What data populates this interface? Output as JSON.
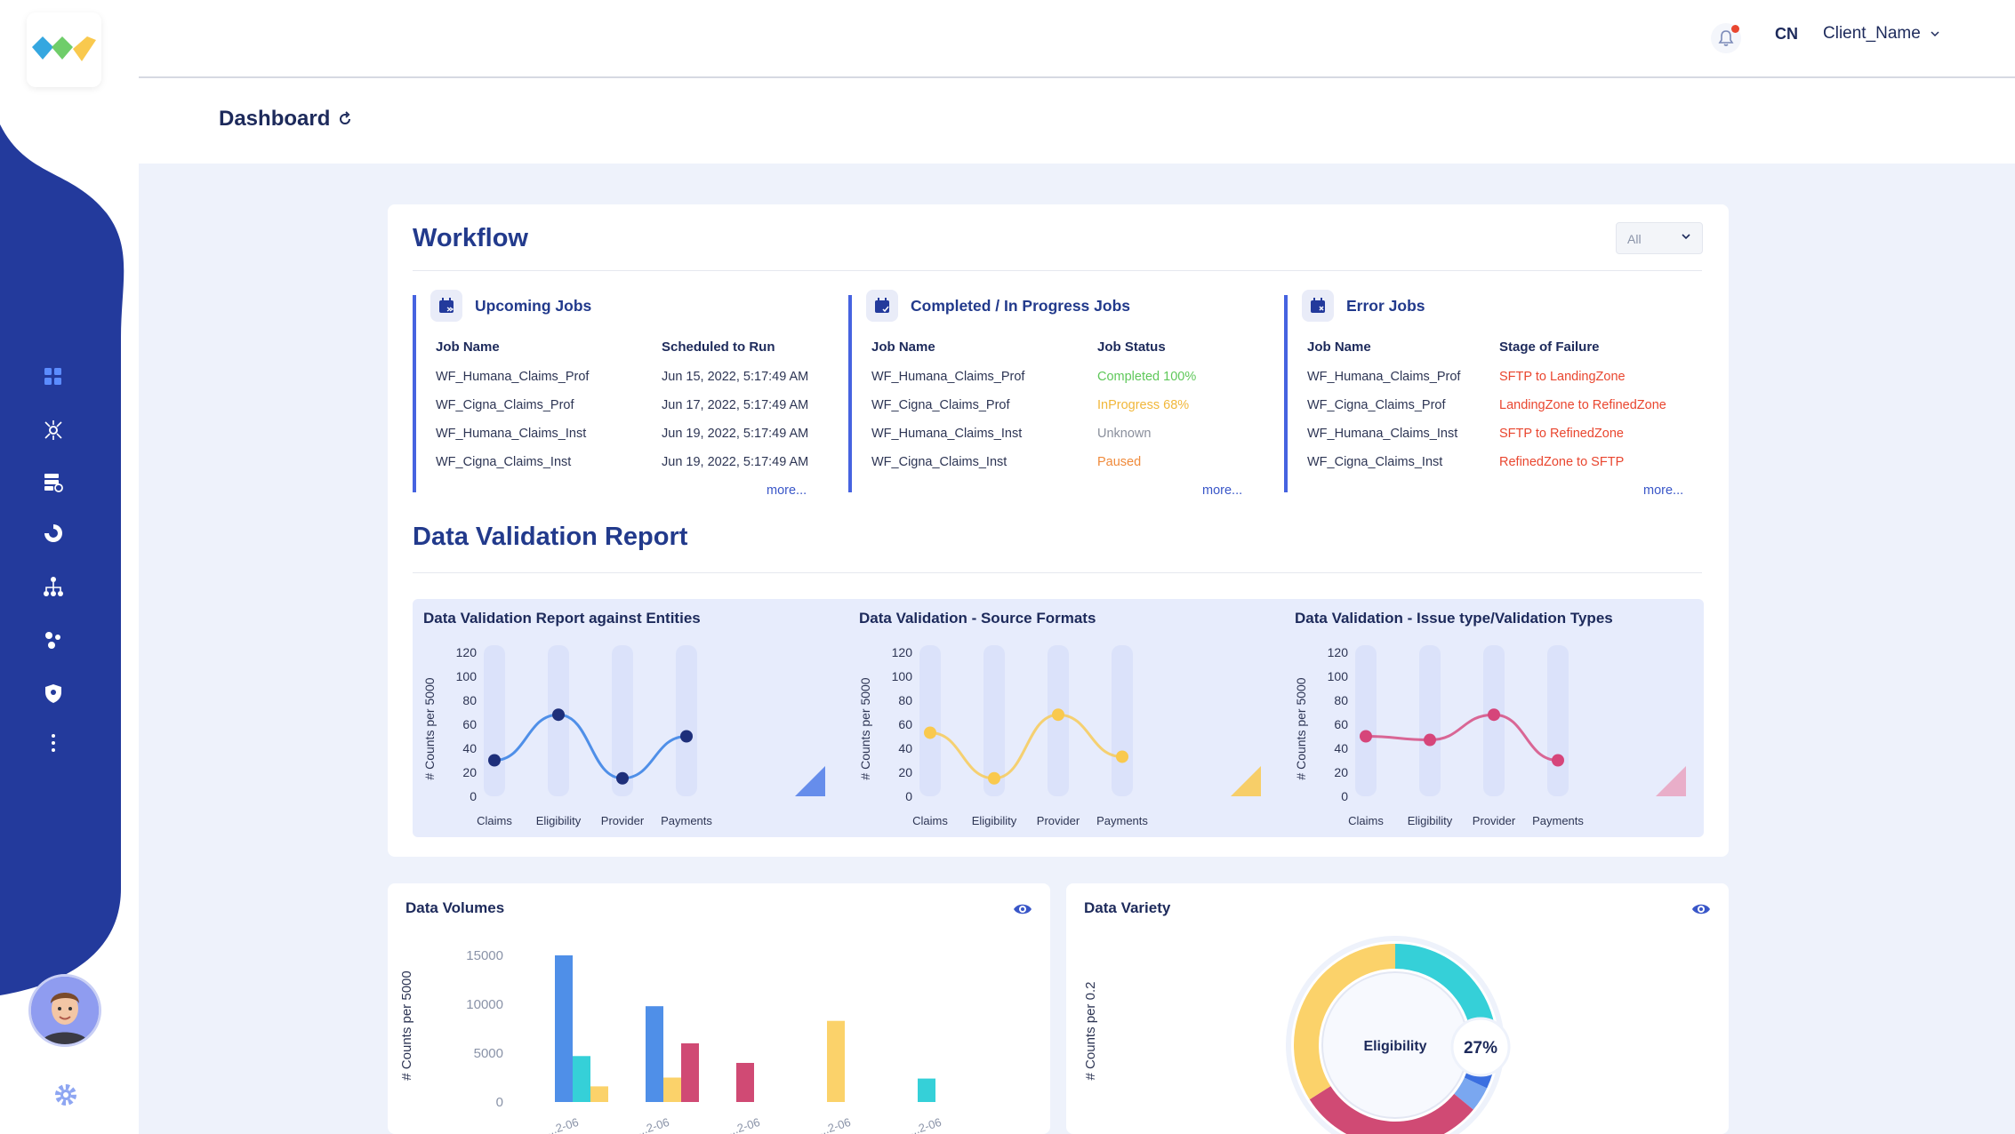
{
  "header": {
    "initials": "CN",
    "client_name": "Client_Name"
  },
  "page": {
    "title": "Dashboard"
  },
  "workflow": {
    "title": "Workflow",
    "filter": {
      "selected": "All"
    },
    "upcoming": {
      "title": "Upcoming Jobs",
      "col1": "Job Name",
      "col2": "Scheduled to Run",
      "rows": [
        {
          "name": "WF_Humana_Claims_Prof",
          "value": "Jun 15, 2022, 5:17:49 AM"
        },
        {
          "name": "WF_Cigna_Claims_Prof",
          "value": "Jun 17, 2022, 5:17:49 AM"
        },
        {
          "name": "WF_Humana_Claims_Inst",
          "value": "Jun 19, 2022, 5:17:49 AM"
        },
        {
          "name": "WF_Cigna_Claims_Inst",
          "value": "Jun 19, 2022, 5:17:49 AM"
        }
      ],
      "more": "more..."
    },
    "completed": {
      "title": "Completed / In Progress Jobs",
      "col1": "Job Name",
      "col2": "Job Status",
      "rows": [
        {
          "name": "WF_Humana_Claims_Prof",
          "value": "Completed 100%",
          "color": "#5fc85a"
        },
        {
          "name": "WF_Cigna_Claims_Prof",
          "value": "InProgress 68%",
          "color": "#f1b73a"
        },
        {
          "name": "WF_Humana_Claims_Inst",
          "value": "Unknown",
          "color": "#8a8f9c"
        },
        {
          "name": "WF_Cigna_Claims_Inst",
          "value": "Paused",
          "color": "#f08a3a"
        }
      ],
      "more": "more..."
    },
    "errors": {
      "title": "Error Jobs",
      "col1": "Job Name",
      "col2": "Stage of Failure",
      "rows": [
        {
          "name": "WF_Humana_Claims_Prof",
          "value": "SFTP to LandingZone",
          "color": "#e9462f"
        },
        {
          "name": "WF_Cigna_Claims_Prof",
          "value": "LandingZone to RefinedZone",
          "color": "#e9462f"
        },
        {
          "name": "WF_Humana_Claims_Inst",
          "value": "SFTP to RefinedZone",
          "color": "#e9462f"
        },
        {
          "name": "WF_Cigna_Claims_Inst",
          "value": "RefinedZone to SFTP",
          "color": "#e9462f"
        }
      ],
      "more": "more..."
    }
  },
  "validation": {
    "title": "Data Validation Report"
  },
  "volumes": {
    "title": "Data Volumes"
  },
  "variety": {
    "title": "Data Variety"
  },
  "chart_data": [
    {
      "type": "line",
      "title": "Data Validation Report against Entities",
      "ylabel": "# Counts per 5000",
      "yticks": [
        0,
        20,
        40,
        60,
        80,
        100,
        120
      ],
      "ylim": [
        0,
        120
      ],
      "categories": [
        "Claims",
        "Eligibility",
        "Provider",
        "Payments"
      ],
      "values": [
        30,
        68,
        15,
        50
      ],
      "color": "#1e2f7a"
    },
    {
      "type": "line",
      "title": "Data Validation - Source Formats",
      "ylabel": "# Counts per 5000",
      "yticks": [
        0,
        20,
        40,
        60,
        80,
        100,
        120
      ],
      "ylim": [
        0,
        120
      ],
      "categories": [
        "Claims",
        "Eligibility",
        "Provider",
        "Payments"
      ],
      "values": [
        53,
        15,
        68,
        33
      ],
      "color": "#f9c94e"
    },
    {
      "type": "line",
      "title": "Data Validation - Issue type/Validation Types",
      "ylabel": "# Counts per 5000",
      "yticks": [
        0,
        20,
        40,
        60,
        80,
        100,
        120
      ],
      "ylim": [
        0,
        120
      ],
      "categories": [
        "Claims",
        "Eligibility",
        "Provider",
        "Payments"
      ],
      "values": [
        50,
        47,
        68,
        30
      ],
      "color": "#d6457a"
    },
    {
      "type": "bar",
      "title": "Data Volumes",
      "ylabel": "# Counts per 5000",
      "yticks": [
        0,
        5000,
        10000,
        15000
      ],
      "ylim": [
        0,
        16000
      ],
      "categories": [
        "...2-06",
        "...2-06",
        "...2-06",
        "...2-06",
        "...2-06"
      ],
      "series": [
        {
          "color": "#4f8fe8",
          "values": [
            15000,
            9800,
            0,
            0,
            0
          ]
        },
        {
          "color": "#35d0d8",
          "values": [
            4700,
            0,
            0,
            0,
            2400
          ]
        },
        {
          "color": "#fbd26a",
          "values": [
            1600,
            2500,
            0,
            8300,
            0
          ]
        },
        {
          "color": "#d04a74",
          "values": [
            0,
            6000,
            4000,
            0,
            0
          ]
        }
      ]
    },
    {
      "type": "pie",
      "title": "Data Variety",
      "ylabel": "# Counts per 0.2",
      "center_label": "Eligibility",
      "highlight": "27%",
      "slices": [
        {
          "value": 27,
          "color": "#35d0d8"
        },
        {
          "value": 5,
          "color": "#3b6fe0"
        },
        {
          "value": 4,
          "color": "#7aa7f0"
        },
        {
          "value": 30,
          "color": "#d04a74"
        },
        {
          "value": 34,
          "color": "#fbd26a"
        }
      ]
    }
  ]
}
